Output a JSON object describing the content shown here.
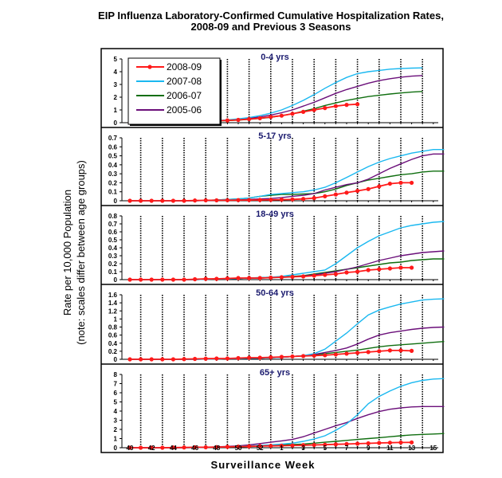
{
  "chart_data": {
    "type": "line",
    "title": "EIP Influenza Laboratory-Confirmed Cumulative Hospitalization Rates, 2008-09 and Previous 3 Seasons",
    "title_lines": [
      "EIP Influenza Laboratory-Confirmed Cumulative Hospitalization Rates,",
      "2008-09 and Previous 3 Seasons"
    ],
    "xlabel": "Surveillance Week",
    "ylabel_lines": [
      "Rate per 10,000 Population",
      "(note: scales differ between age groups)"
    ],
    "x_tick_labels": [
      "40",
      "42",
      "44",
      "46",
      "48",
      "50",
      "52",
      "1",
      "3",
      "5",
      "7",
      "9",
      "11",
      "13",
      "15"
    ],
    "legend": {
      "placement": "top-left",
      "entries": [
        "2008-09",
        "2007-08",
        "2006-07",
        "2005-06"
      ]
    },
    "series_styles": [
      {
        "name": "2008-09",
        "color": "#ff1a1a",
        "markers": true
      },
      {
        "name": "2007-08",
        "color": "#1ab8f0",
        "markers": false
      },
      {
        "name": "2006-07",
        "color": "#0f6e0f",
        "markers": false
      },
      {
        "name": "2005-06",
        "color": "#6b0f7a",
        "markers": false
      }
    ],
    "panels": [
      {
        "label": "0-4 yrs",
        "ylim": [
          0,
          5
        ],
        "yticks": [
          "0",
          "1",
          "2",
          "3",
          "4",
          "5"
        ],
        "series": [
          {
            "name": "2008-09",
            "values": [
              0,
              0.02,
              0.04,
              0.05,
              0.06,
              0.08,
              0.1,
              0.12,
              0.15,
              0.18,
              0.22,
              0.28,
              0.35,
              0.45,
              0.55,
              0.7,
              0.85,
              1.0,
              1.15,
              1.3,
              1.4,
              1.45
            ]
          },
          {
            "name": "2007-08",
            "values": [
              0.02,
              0.03,
              0.04,
              0.05,
              0.06,
              0.08,
              0.1,
              0.13,
              0.17,
              0.22,
              0.3,
              0.4,
              0.55,
              0.75,
              1.0,
              1.35,
              1.75,
              2.2,
              2.7,
              3.15,
              3.55,
              3.85,
              4.0,
              4.1,
              4.2,
              4.25,
              4.28,
              4.3
            ]
          },
          {
            "name": "2006-07",
            "values": [
              0.02,
              0.03,
              0.04,
              0.05,
              0.06,
              0.07,
              0.08,
              0.1,
              0.13,
              0.16,
              0.2,
              0.26,
              0.33,
              0.42,
              0.55,
              0.7,
              0.9,
              1.1,
              1.35,
              1.55,
              1.75,
              1.9,
              2.05,
              2.15,
              2.25,
              2.33,
              2.4,
              2.45
            ]
          },
          {
            "name": "2005-06",
            "values": [
              0.02,
              0.03,
              0.04,
              0.05,
              0.06,
              0.07,
              0.09,
              0.11,
              0.15,
              0.2,
              0.27,
              0.35,
              0.45,
              0.6,
              0.78,
              1.0,
              1.3,
              1.6,
              1.95,
              2.3,
              2.6,
              2.85,
              3.1,
              3.3,
              3.45,
              3.57,
              3.65,
              3.7
            ]
          }
        ]
      },
      {
        "label": "5-17 yrs",
        "ylim": [
          0,
          0.7
        ],
        "yticks": [
          "0",
          "0.1",
          "0.2",
          "0.3",
          "0.4",
          "0.5",
          "0.6",
          "0.7"
        ],
        "series": [
          {
            "name": "2008-09",
            "values": [
              0,
              0,
              0,
              0,
              0,
              0,
              0.003,
              0.005,
              0.005,
              0.006,
              0.007,
              0.008,
              0.009,
              0.01,
              0.012,
              0.015,
              0.02,
              0.03,
              0.05,
              0.07,
              0.09,
              0.11,
              0.13,
              0.16,
              0.19,
              0.2,
              0.2
            ]
          },
          {
            "name": "2007-08",
            "values": [
              0,
              0,
              0,
              0,
              0,
              0,
              0,
              0.005,
              0.01,
              0.015,
              0.02,
              0.03,
              0.05,
              0.07,
              0.08,
              0.09,
              0.1,
              0.12,
              0.15,
              0.2,
              0.26,
              0.32,
              0.38,
              0.43,
              0.47,
              0.5,
              0.53,
              0.55,
              0.57,
              0.57
            ]
          },
          {
            "name": "2006-07",
            "values": [
              0,
              0,
              0,
              0,
              0,
              0,
              0,
              0.005,
              0.01,
              0.015,
              0.02,
              0.03,
              0.05,
              0.06,
              0.07,
              0.07,
              0.075,
              0.08,
              0.1,
              0.13,
              0.17,
              0.2,
              0.23,
              0.25,
              0.27,
              0.29,
              0.3,
              0.32,
              0.33,
              0.33
            ]
          },
          {
            "name": "2005-06",
            "values": [
              0,
              0,
              0,
              0,
              0,
              0,
              0,
              0.003,
              0.005,
              0.008,
              0.01,
              0.015,
              0.02,
              0.025,
              0.035,
              0.05,
              0.06,
              0.08,
              0.12,
              0.15,
              0.18,
              0.2,
              0.24,
              0.3,
              0.36,
              0.41,
              0.46,
              0.5,
              0.52,
              0.52
            ]
          }
        ]
      },
      {
        "label": "18-49 yrs",
        "ylim": [
          0,
          0.8
        ],
        "yticks": [
          "0",
          "0.1",
          "0.2",
          "0.3",
          "0.4",
          "0.5",
          "0.6",
          "0.7",
          "0.8"
        ],
        "series": [
          {
            "name": "2008-09",
            "values": [
              0,
              0,
              0,
              0,
              0,
              0,
              0.005,
              0.01,
              0.01,
              0.015,
              0.02,
              0.02,
              0.02,
              0.025,
              0.03,
              0.035,
              0.04,
              0.05,
              0.06,
              0.07,
              0.09,
              0.1,
              0.12,
              0.13,
              0.14,
              0.15,
              0.15
            ]
          },
          {
            "name": "2007-08",
            "values": [
              0,
              0,
              0,
              0,
              0,
              0,
              0,
              0.005,
              0.01,
              0.01,
              0.015,
              0.02,
              0.025,
              0.03,
              0.04,
              0.06,
              0.08,
              0.1,
              0.12,
              0.2,
              0.3,
              0.4,
              0.48,
              0.55,
              0.6,
              0.65,
              0.68,
              0.7,
              0.72,
              0.73
            ]
          },
          {
            "name": "2006-07",
            "values": [
              0,
              0,
              0,
              0,
              0,
              0,
              0,
              0.005,
              0.01,
              0.01,
              0.015,
              0.02,
              0.025,
              0.03,
              0.035,
              0.04,
              0.05,
              0.07,
              0.09,
              0.11,
              0.13,
              0.15,
              0.17,
              0.19,
              0.21,
              0.22,
              0.24,
              0.25,
              0.26,
              0.26
            ]
          },
          {
            "name": "2005-06",
            "values": [
              0,
              0,
              0,
              0,
              0,
              0,
              0,
              0.005,
              0.01,
              0.01,
              0.015,
              0.02,
              0.02,
              0.025,
              0.03,
              0.035,
              0.045,
              0.06,
              0.08,
              0.1,
              0.13,
              0.16,
              0.2,
              0.24,
              0.27,
              0.3,
              0.32,
              0.34,
              0.35,
              0.36
            ]
          }
        ]
      },
      {
        "label": "50-64 yrs",
        "ylim": [
          0,
          1.6
        ],
        "yticks": [
          "0",
          "0.2",
          "0.4",
          "0.6",
          "0.8",
          "1",
          "1.2",
          "1.4",
          "1.6"
        ],
        "series": [
          {
            "name": "2008-09",
            "values": [
              0,
              0,
              0,
              0,
              0,
              0.005,
              0.01,
              0.015,
              0.02,
              0.02,
              0.03,
              0.04,
              0.04,
              0.05,
              0.06,
              0.07,
              0.08,
              0.09,
              0.1,
              0.12,
              0.14,
              0.16,
              0.18,
              0.2,
              0.22,
              0.22,
              0.21
            ]
          },
          {
            "name": "2007-08",
            "values": [
              0,
              0,
              0,
              0,
              0,
              0,
              0,
              0.005,
              0.01,
              0.015,
              0.02,
              0.025,
              0.03,
              0.04,
              0.05,
              0.07,
              0.09,
              0.14,
              0.25,
              0.45,
              0.65,
              0.88,
              1.1,
              1.22,
              1.3,
              1.37,
              1.42,
              1.47,
              1.49,
              1.5
            ]
          },
          {
            "name": "2006-07",
            "values": [
              0,
              0,
              0,
              0,
              0,
              0,
              0,
              0.005,
              0.01,
              0.015,
              0.02,
              0.025,
              0.03,
              0.04,
              0.05,
              0.07,
              0.09,
              0.11,
              0.14,
              0.17,
              0.2,
              0.23,
              0.27,
              0.31,
              0.34,
              0.36,
              0.38,
              0.4,
              0.42,
              0.44
            ]
          },
          {
            "name": "2005-06",
            "values": [
              0,
              0,
              0,
              0,
              0,
              0,
              0,
              0.005,
              0.01,
              0.015,
              0.02,
              0.025,
              0.03,
              0.04,
              0.05,
              0.07,
              0.09,
              0.12,
              0.17,
              0.22,
              0.28,
              0.38,
              0.5,
              0.6,
              0.66,
              0.7,
              0.74,
              0.77,
              0.79,
              0.8
            ]
          }
        ]
      },
      {
        "label": "65+ yrs",
        "ylim": [
          0,
          8
        ],
        "yticks": [
          "0",
          "1",
          "2",
          "3",
          "4",
          "5",
          "6",
          "7",
          "8"
        ],
        "series": [
          {
            "name": "2008-09",
            "values": [
              0,
              0,
              0,
              0,
              0.02,
              0.03,
              0.05,
              0.05,
              0.07,
              0.1,
              0.12,
              0.15,
              0.18,
              0.2,
              0.22,
              0.25,
              0.28,
              0.3,
              0.33,
              0.37,
              0.4,
              0.44,
              0.48,
              0.52,
              0.55,
              0.57,
              0.58
            ]
          },
          {
            "name": "2007-08",
            "values": [
              0,
              0,
              0,
              0,
              0,
              0,
              0.02,
              0.05,
              0.07,
              0.1,
              0.15,
              0.2,
              0.25,
              0.3,
              0.4,
              0.5,
              0.7,
              0.95,
              1.3,
              1.9,
              2.6,
              3.6,
              4.8,
              5.6,
              6.2,
              6.7,
              7.1,
              7.35,
              7.5,
              7.55
            ]
          },
          {
            "name": "2006-07",
            "values": [
              0,
              0,
              0,
              0,
              0,
              0,
              0.02,
              0.04,
              0.06,
              0.08,
              0.1,
              0.15,
              0.2,
              0.25,
              0.3,
              0.35,
              0.4,
              0.5,
              0.6,
              0.7,
              0.8,
              0.9,
              1.0,
              1.1,
              1.2,
              1.3,
              1.4,
              1.45,
              1.5,
              1.55
            ]
          },
          {
            "name": "2005-06",
            "values": [
              0,
              0,
              0,
              0,
              0,
              0,
              0.02,
              0.05,
              0.1,
              0.15,
              0.2,
              0.3,
              0.45,
              0.6,
              0.75,
              0.9,
              1.2,
              1.6,
              2.0,
              2.4,
              2.75,
              3.2,
              3.6,
              3.95,
              4.2,
              4.35,
              4.45,
              4.5,
              4.5,
              4.5
            ]
          }
        ]
      }
    ]
  }
}
